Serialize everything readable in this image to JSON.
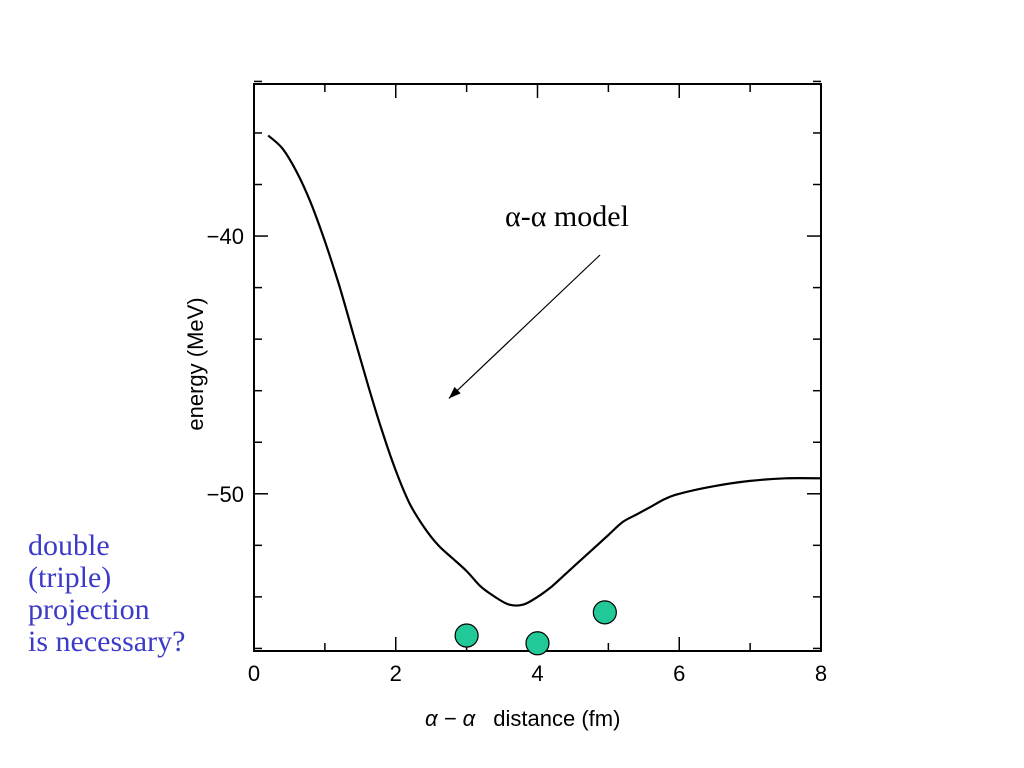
{
  "chart_data": {
    "type": "line",
    "xlabel_symbol": "α − α",
    "xlabel_text": "distance (fm)",
    "ylabel": "energy (MeV)",
    "xlim": [
      0,
      8
    ],
    "ylim": [
      -56.1,
      -34.1
    ],
    "x_ticks": [
      0,
      2,
      4,
      6,
      8
    ],
    "x_tick_labels": [
      "0",
      "2",
      "4",
      "6",
      "8"
    ],
    "y_ticks": [
      -40,
      -50
    ],
    "y_tick_labels": [
      "−40",
      "−50"
    ],
    "grid": false,
    "series": [
      {
        "kind": "line",
        "color": "#000000",
        "x": [
          0.2,
          0.4,
          0.6,
          0.8,
          1.0,
          1.2,
          1.4,
          1.6,
          1.8,
          2.0,
          2.2,
          2.4,
          2.6,
          2.8,
          3.0,
          3.2,
          3.4,
          3.6,
          3.8,
          4.0,
          4.2,
          4.4,
          4.6,
          4.8,
          5.0,
          5.2,
          5.4,
          5.6,
          5.8,
          6.0,
          6.5,
          7.0,
          7.5,
          8.0
        ],
        "y": [
          -36.1,
          -36.6,
          -37.5,
          -38.7,
          -40.2,
          -41.9,
          -43.8,
          -45.7,
          -47.5,
          -49.1,
          -50.4,
          -51.3,
          -52.0,
          -52.5,
          -53.0,
          -53.6,
          -54.0,
          -54.3,
          -54.3,
          -54.0,
          -53.6,
          -53.1,
          -52.6,
          -52.1,
          -51.6,
          -51.1,
          -50.8,
          -50.5,
          -50.2,
          -50.0,
          -49.7,
          -49.5,
          -49.4,
          -49.4
        ]
      },
      {
        "kind": "scatter",
        "color": "#20c997",
        "x": [
          3.0,
          4.0,
          4.95
        ],
        "y": [
          -55.5,
          -55.8,
          -54.6
        ]
      }
    ],
    "annotation": {
      "text": "α-α model",
      "points_to": {
        "x": 2.75,
        "y": -46.3
      }
    }
  },
  "side_note": {
    "lines": [
      "double",
      "(triple)",
      "projection",
      "is necessary?"
    ],
    "color": "#3b3bc8"
  }
}
